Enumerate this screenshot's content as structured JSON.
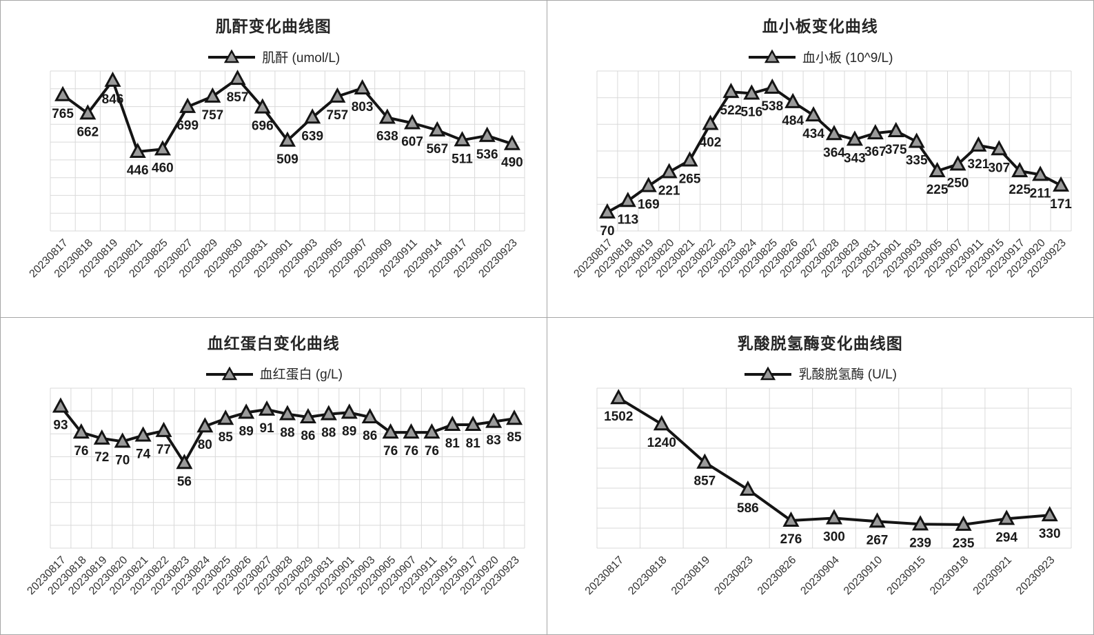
{
  "page": {
    "background_color": "#ffffff",
    "panel_border_color": "#a6a6a6",
    "layout": "2x2-grid-of-line-charts"
  },
  "colors": {
    "line": "#141414",
    "marker_fill": "#9a9a9a",
    "marker_stroke": "#141414",
    "gridline": "#d9d9d9",
    "title_text": "#262626",
    "data_label_text": "#1a1a1a",
    "axis_label_text": "#333333"
  },
  "icons": {
    "legend_marker": "triangle-on-line"
  },
  "chart_data": [
    {
      "type": "line",
      "title": "肌酐变化曲线图",
      "legend_label": "肌酐 (umol/L)",
      "unit": "umol/L",
      "legend_position": "top",
      "grid": true,
      "marker": "triangle",
      "categories": [
        "20230817",
        "20230818",
        "20230819",
        "20230821",
        "20230825",
        "20230827",
        "20230829",
        "20230830",
        "20230831",
        "20230901",
        "20230903",
        "20230905",
        "20230907",
        "20230909",
        "20230911",
        "20230914",
        "20230917",
        "20230920",
        "20230923"
      ],
      "values": [
        765,
        662,
        846,
        446,
        460,
        699,
        757,
        857,
        696,
        509,
        639,
        757,
        803,
        638,
        607,
        567,
        511,
        536,
        490
      ],
      "ylim": [
        0,
        900
      ],
      "grid_rows": 9
    },
    {
      "type": "line",
      "title": "血小板变化曲线",
      "legend_label": "血小板 (10^9/L)",
      "unit": "10^9/L",
      "legend_position": "top",
      "grid": true,
      "marker": "triangle",
      "categories": [
        "20230817",
        "20230818",
        "20230819",
        "20230820",
        "20230821",
        "20230822",
        "20230823",
        "20230824",
        "20230825",
        "20230826",
        "20230827",
        "20230828",
        "20230829",
        "20230831",
        "20230901",
        "20230903",
        "20230905",
        "20230907",
        "20230911",
        "20230915",
        "20230917",
        "20230920",
        "20230923"
      ],
      "values": [
        70,
        113,
        169,
        221,
        265,
        402,
        522,
        516,
        538,
        484,
        434,
        364,
        343,
        367,
        375,
        335,
        225,
        250,
        321,
        307,
        225,
        211,
        171
      ],
      "ylim": [
        0,
        600
      ],
      "grid_rows": 6
    },
    {
      "type": "line",
      "title": "血红蛋白变化曲线",
      "legend_label": "血红蛋白 (g/L)",
      "unit": "g/L",
      "legend_position": "top",
      "grid": true,
      "marker": "triangle",
      "categories": [
        "20230817",
        "20230818",
        "20230819",
        "20230820",
        "20230821",
        "20230822",
        "20230823",
        "20230824",
        "20230825",
        "20230826",
        "20230827",
        "20230828",
        "20230829",
        "20230831",
        "20230901",
        "20230903",
        "20230905",
        "20230907",
        "20230911",
        "20230915",
        "20230917",
        "20230920",
        "20230923"
      ],
      "values": [
        93,
        76,
        72,
        70,
        74,
        77,
        56,
        80,
        85,
        89,
        91,
        88,
        86,
        88,
        89,
        86,
        76,
        76,
        76,
        81,
        81,
        83,
        85
      ],
      "ylim": [
        0,
        105
      ],
      "grid_rows": 7
    },
    {
      "type": "line",
      "title": "乳酸脱氢酶变化曲线图",
      "legend_label": "乳酸脱氢酶 (U/L)",
      "unit": "U/L",
      "legend_position": "top",
      "grid": true,
      "marker": "triangle",
      "categories": [
        "20230817",
        "20230818",
        "20230819",
        "20230823",
        "20230826",
        "20230904",
        "20230910",
        "20230915",
        "20230918",
        "20230921",
        "20230923"
      ],
      "values": [
        1502,
        1240,
        857,
        586,
        276,
        300,
        267,
        239,
        235,
        294,
        330
      ],
      "ylim": [
        0,
        1600
      ],
      "grid_rows": 8
    }
  ]
}
